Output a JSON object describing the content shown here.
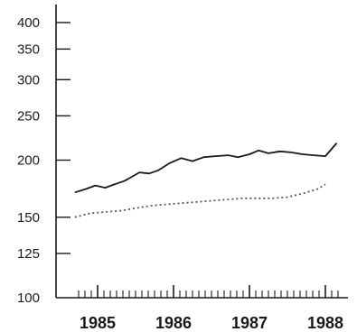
{
  "chart_data": {
    "type": "line",
    "title": "",
    "xlabel": "",
    "ylabel": "",
    "y_scale": "log",
    "ylim": [
      100,
      400
    ],
    "xlim": [
      1984.7,
      1988.2
    ],
    "y_ticks": [
      100,
      125,
      150,
      200,
      250,
      300,
      350,
      400
    ],
    "y_tick_labels": [
      "100",
      "125",
      "150",
      "200",
      "250",
      "300",
      "350",
      "400"
    ],
    "x_ticks": [
      1985,
      1986,
      1987,
      1988
    ],
    "x_tick_labels": [
      "1985",
      "1986",
      "1987",
      "1988"
    ],
    "grid": false,
    "series": [
      {
        "style": "solid",
        "color": "#1a1a1a",
        "x": [
          1984.7,
          1984.85,
          1984.97,
          1985.1,
          1985.22,
          1985.35,
          1985.43,
          1985.55,
          1985.68,
          1985.8,
          1985.95,
          1986.1,
          1986.25,
          1986.4,
          1986.55,
          1986.72,
          1986.85,
          1987.0,
          1987.12,
          1987.25,
          1987.4,
          1987.55,
          1987.7,
          1987.85,
          1988.0,
          1988.15
        ],
        "y": [
          170,
          173,
          176,
          174,
          177,
          180,
          183,
          188,
          187,
          190,
          197,
          202,
          199,
          203,
          204,
          205,
          203,
          206,
          210,
          207,
          209,
          208,
          206,
          205,
          204,
          218
        ]
      },
      {
        "style": "dotted",
        "color": "#555555",
        "x": [
          1984.7,
          1984.9,
          1985.1,
          1985.3,
          1985.5,
          1985.7,
          1985.9,
          1986.1,
          1986.3,
          1986.5,
          1986.7,
          1986.9,
          1987.1,
          1987.3,
          1987.5,
          1987.7,
          1987.9,
          1988.0
        ],
        "y": [
          150,
          153,
          154,
          155,
          157,
          159,
          160,
          161,
          162,
          163,
          164,
          165,
          165,
          165,
          166,
          169,
          173,
          177
        ]
      }
    ]
  }
}
